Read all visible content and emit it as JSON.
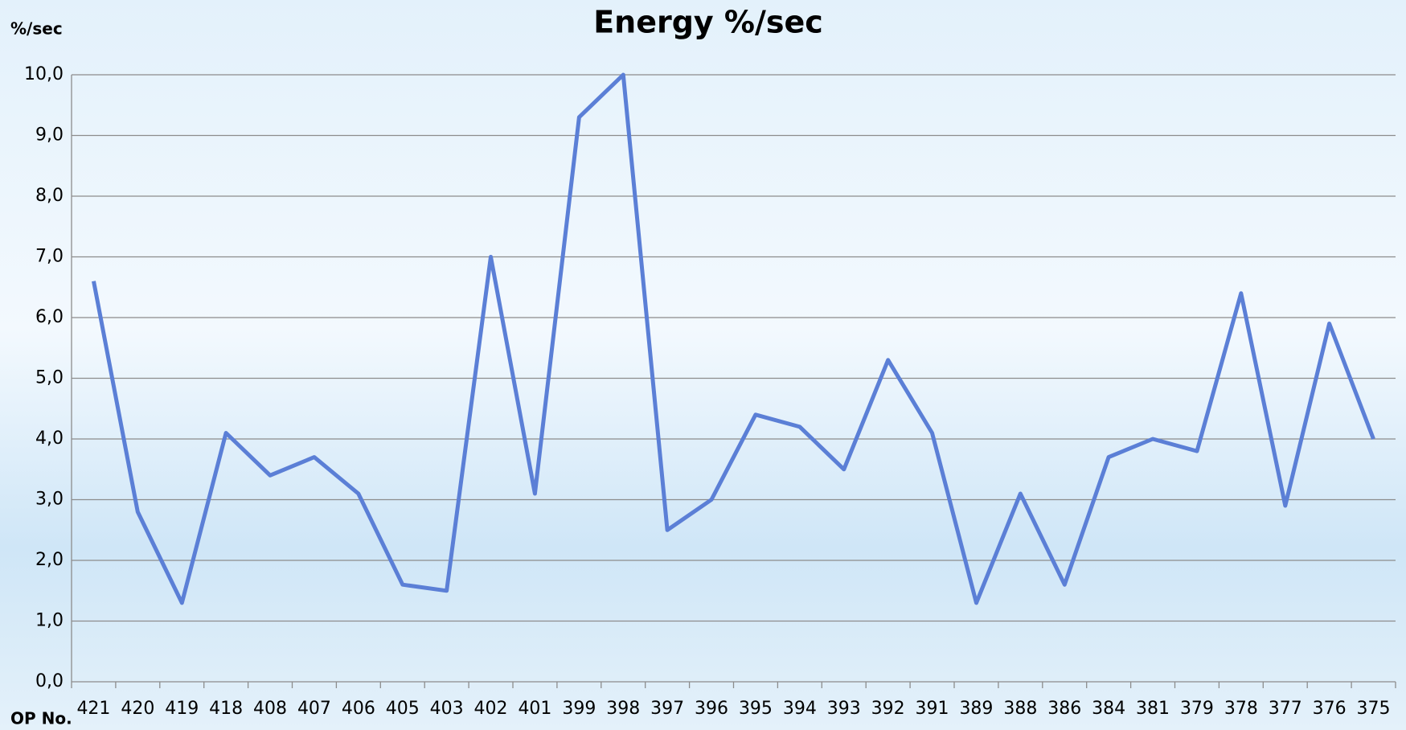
{
  "chart_data": {
    "type": "line",
    "title": "Energy %/sec",
    "y_label": "%/sec",
    "x_label": "OP No.",
    "categories": [
      "421",
      "420",
      "419",
      "418",
      "408",
      "407",
      "406",
      "405",
      "403",
      "402",
      "401",
      "399",
      "398",
      "397",
      "396",
      "395",
      "394",
      "393",
      "392",
      "391",
      "389",
      "388",
      "386",
      "384",
      "381",
      "379",
      "378",
      "377",
      "376",
      "375"
    ],
    "series": [
      {
        "name": "Energy %/sec",
        "color": "#5b7fd6",
        "values": [
          6.6,
          2.8,
          1.3,
          4.1,
          3.4,
          3.7,
          3.1,
          1.6,
          1.5,
          7.0,
          3.1,
          9.3,
          10.0,
          2.5,
          3.0,
          4.4,
          4.2,
          3.5,
          5.3,
          4.1,
          1.3,
          3.1,
          1.6,
          3.7,
          4.0,
          3.8,
          6.4,
          2.9,
          5.9,
          4.0
        ]
      }
    ],
    "ylim": [
      0,
      10
    ],
    "yticks": [
      {
        "value": 0,
        "label": "0,0"
      },
      {
        "value": 1,
        "label": "1,0"
      },
      {
        "value": 2,
        "label": "2,0"
      },
      {
        "value": 3,
        "label": "3,0"
      },
      {
        "value": 4,
        "label": "4,0"
      },
      {
        "value": 5,
        "label": "5,0"
      },
      {
        "value": 6,
        "label": "6,0"
      },
      {
        "value": 7,
        "label": "7,0"
      },
      {
        "value": 8,
        "label": "8,0"
      },
      {
        "value": 9,
        "label": "9,0"
      },
      {
        "value": 10,
        "label": "10,0"
      }
    ],
    "grid": true
  }
}
